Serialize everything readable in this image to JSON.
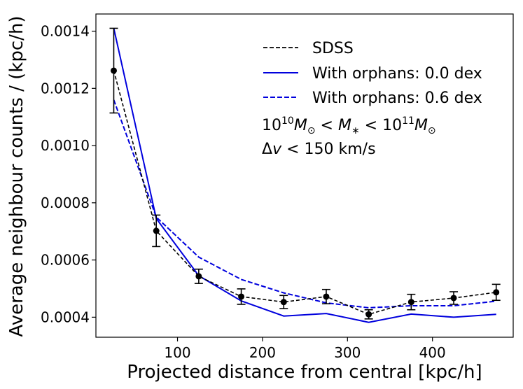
{
  "chart_data": {
    "type": "line",
    "title": "",
    "xlabel": "Projected distance from central [kpc/h]",
    "ylabel": "Average neighbour counts / (kpc/h)",
    "xlim": [
      4,
      495
    ],
    "ylim": [
      0.00033,
      0.00146
    ],
    "xticks": [
      100,
      200,
      300,
      400
    ],
    "xtick_labels": [
      "100",
      "200",
      "300",
      "400"
    ],
    "yticks": [
      0.0004,
      0.0006,
      0.0008,
      0.001,
      0.0012,
      0.0014
    ],
    "ytick_labels": [
      "0.0004",
      "0.0006",
      "0.0008",
      "0.0010",
      "0.0012",
      "0.0014"
    ],
    "grid": false,
    "legend_position": "top-right",
    "x": [
      25,
      75,
      125,
      175,
      225,
      275,
      325,
      375,
      425,
      475
    ],
    "series": [
      {
        "name": "SDSS",
        "color": "#000000",
        "style": "dashed",
        "markers": true,
        "values": [
          0.001262,
          0.000702,
          0.000543,
          0.000472,
          0.000453,
          0.000472,
          0.00041,
          0.000453,
          0.000467,
          0.000487
        ],
        "errors": [
          0.000148,
          5.5e-05,
          2.5e-05,
          2.7e-05,
          2.3e-05,
          2.5e-05,
          1.6e-05,
          2.7e-05,
          2.2e-05,
          2.8e-05
        ]
      },
      {
        "name": "With orphans: 0.0 dex",
        "color": "#0000dd",
        "style": "solid",
        "markers": false,
        "values": [
          0.00141,
          0.000745,
          0.000545,
          0.000457,
          0.000404,
          0.000413,
          0.000382,
          0.000411,
          0.0004,
          0.00041
        ],
        "errors": []
      },
      {
        "name": "With orphans: 0.6 dex",
        "color": "#0000dd",
        "style": "dashed",
        "markers": false,
        "values": [
          0.00116,
          0.00075,
          0.00061,
          0.000532,
          0.000485,
          0.00045,
          0.000433,
          0.00044,
          0.00044,
          0.000456
        ],
        "errors": []
      }
    ],
    "annotations": {
      "mass_range": {
        "lower_base": "10",
        "lower_exp": "10",
        "m_sun_1": "M",
        "sun_symbol": "⊙",
        "lt_1": " < ",
        "m_star": "M",
        "star": "∗",
        "lt_2": " < ",
        "upper_base": "10",
        "upper_exp": "11",
        "m_sun_2": "M"
      },
      "velocity": {
        "delta": "Δ",
        "v": "v",
        "rest": " < 150 km/s"
      }
    }
  }
}
